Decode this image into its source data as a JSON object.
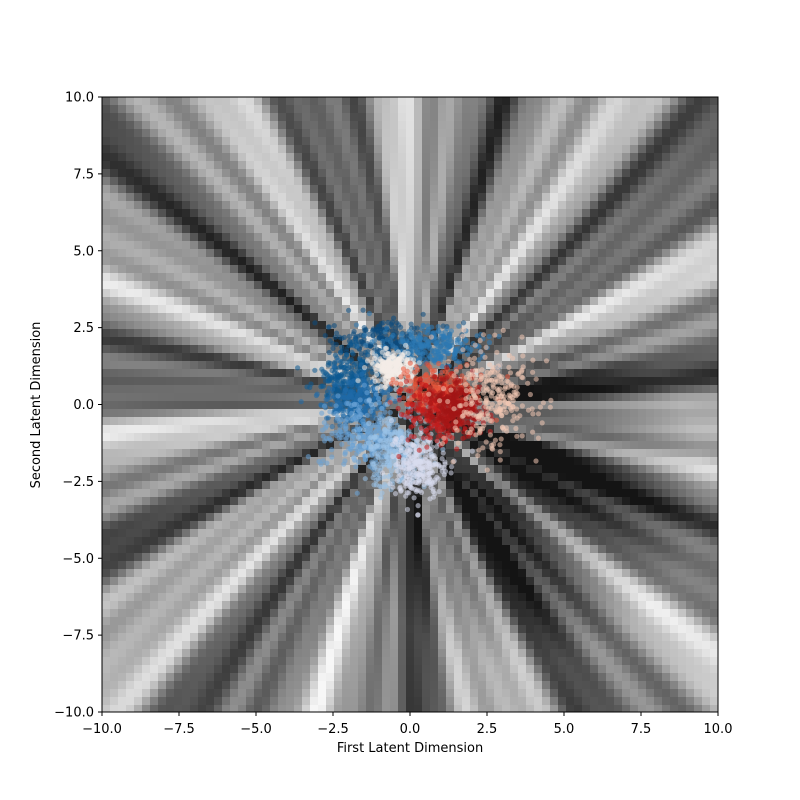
{
  "chart_data": {
    "type": "scatter",
    "title": "",
    "xlabel": "First Latent Dimension",
    "ylabel": "Second Latent Dimension",
    "xlim": [
      -10,
      10
    ],
    "ylim": [
      -10,
      10
    ],
    "x_ticks": [
      -10,
      -7.5,
      -5,
      -2.5,
      0,
      2.5,
      5,
      7.5,
      10
    ],
    "y_ticks": [
      -10,
      -7.5,
      -5,
      -2.5,
      0,
      2.5,
      5,
      7.5,
      10
    ],
    "x_tick_labels": [
      "−10.0",
      "−7.5",
      "−5.0",
      "−2.5",
      "0.0",
      "2.5",
      "5.0",
      "7.5",
      "10.0"
    ],
    "y_tick_labels": [
      "−10.0",
      "−7.5",
      "−5.0",
      "−2.5",
      "0.0",
      "2.5",
      "5.0",
      "7.5",
      "10.0"
    ],
    "grid": false,
    "legend": "none",
    "background": {
      "description": "grayscale decoded latent-space map with streaks radiating from the origin",
      "dark_region_center": [
        3.5,
        -2.5
      ]
    },
    "clusters": [
      {
        "color": "#0b4a7e",
        "center": [
          -0.6,
          2.0
        ],
        "spread": [
          0.9,
          0.35
        ]
      },
      {
        "color": "#2e7ab5",
        "center": [
          0.6,
          1.9
        ],
        "spread": [
          0.9,
          0.3
        ]
      },
      {
        "color": "#0d5a92",
        "center": [
          -2.0,
          0.8
        ],
        "spread": [
          0.5,
          0.5
        ]
      },
      {
        "color": "#1f6aa8",
        "center": [
          -1.7,
          0.1
        ],
        "spread": [
          0.5,
          0.4
        ]
      },
      {
        "color": "#6aa3d6",
        "center": [
          -1.5,
          -1.0
        ],
        "spread": [
          0.6,
          0.6
        ]
      },
      {
        "color": "#9bc3e8",
        "center": [
          -0.5,
          -1.5
        ],
        "spread": [
          0.5,
          0.6
        ]
      },
      {
        "color": "#d8dcef",
        "center": [
          0.3,
          -2.0
        ],
        "spread": [
          0.45,
          0.6
        ]
      },
      {
        "color": "#f4ece8",
        "center": [
          -0.5,
          1.2
        ],
        "spread": [
          0.35,
          0.25
        ]
      },
      {
        "color": "#e8553a",
        "center": [
          0.9,
          0.4
        ],
        "spread": [
          0.6,
          0.4
        ]
      },
      {
        "color": "#c41e1e",
        "center": [
          1.0,
          -0.3
        ],
        "spread": [
          0.6,
          0.5
        ]
      },
      {
        "color": "#a31515",
        "center": [
          1.5,
          0.0
        ],
        "spread": [
          0.4,
          0.4
        ]
      },
      {
        "color": "#f2c9b4",
        "center": [
          2.6,
          0.2
        ],
        "spread": [
          0.7,
          0.8
        ]
      }
    ]
  }
}
